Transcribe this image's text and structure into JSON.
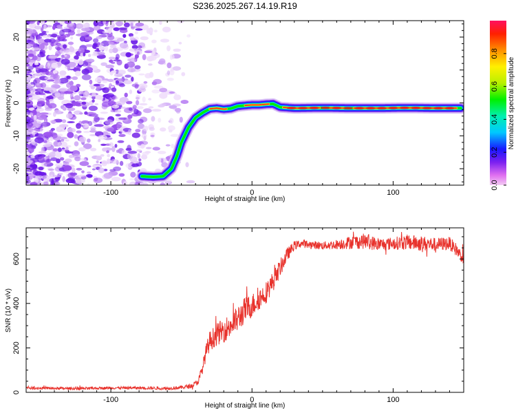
{
  "title": "S236.2025.267.14.19.R19",
  "colors": {
    "snr_line": "#e8322c",
    "axis": "#000000",
    "noise_purple": "#7a2ce8",
    "noise_lavender": "#d6b8f4"
  },
  "chart_data": [
    {
      "type": "heatmap",
      "name": "spectrogram",
      "title": "S236.2025.267.14.19.R19",
      "xlabel": "Height of straight line (km)",
      "ylabel": "Frequency (Hz)",
      "xlim": [
        -160,
        150
      ],
      "ylim": [
        -25,
        25
      ],
      "xticks": [
        -100,
        0,
        100
      ],
      "xtick_labels": [
        "-100",
        "0",
        "100"
      ],
      "yticks": [
        -20,
        -10,
        0,
        10,
        20
      ],
      "ytick_labels": [
        "-20",
        "-10",
        "0",
        "10",
        "20"
      ],
      "track": {
        "x": [
          -78,
          -70,
          -63,
          -57,
          -53,
          -50,
          -45,
          -40,
          -35,
          -30,
          -25,
          -20,
          -15,
          -10,
          -5,
          0,
          5,
          10,
          15,
          20,
          30,
          50,
          70,
          90,
          110,
          130,
          148
        ],
        "y": [
          -22.3,
          -22.5,
          -22.3,
          -20,
          -16,
          -12,
          -7.5,
          -4.5,
          -3,
          -1.8,
          -1.6,
          -1.9,
          -1.7,
          -1,
          -0.8,
          -0.6,
          -0.6,
          -0.4,
          -0.3,
          -1.3,
          -1.6,
          -1.5,
          -1.6,
          -1.6,
          -1.5,
          -1.6,
          -1.6
        ]
      },
      "colorbar": {
        "label": "Normalized spectral amplitude",
        "range": [
          0,
          1
        ],
        "ticks": [
          0.0,
          0.2,
          0.4,
          0.6,
          0.8
        ],
        "tick_labels": [
          "0.0",
          "0.2",
          "0.4",
          "0.6",
          "0.8"
        ]
      }
    },
    {
      "type": "line",
      "name": "snr",
      "xlabel": "Height of straight line (km)",
      "ylabel": "SNR (10 * v/v)",
      "xlim": [
        -160,
        150
      ],
      "ylim": [
        0,
        740
      ],
      "xticks": [
        -100,
        0,
        100
      ],
      "xtick_labels": [
        "-100",
        "0",
        "100"
      ],
      "yticks": [
        0,
        200,
        400,
        600
      ],
      "ytick_labels": [
        "0",
        "200",
        "400",
        "600"
      ],
      "series": [
        {
          "name": "SNR",
          "x": [
            -160,
            -140,
            -120,
            -100,
            -80,
            -60,
            -50,
            -42,
            -38,
            -35,
            -33,
            -30,
            -25,
            -20,
            -15,
            -10,
            -5,
            0,
            5,
            10,
            15,
            20,
            25,
            30,
            35,
            40,
            50,
            60,
            70,
            80,
            90,
            100,
            110,
            120,
            130,
            140,
            145,
            150
          ],
          "values": [
            20,
            18,
            17,
            20,
            20,
            18,
            22,
            30,
            50,
            110,
            170,
            230,
            260,
            280,
            300,
            330,
            370,
            390,
            420,
            450,
            500,
            560,
            620,
            660,
            670,
            665,
            660,
            665,
            675,
            680,
            665,
            670,
            675,
            670,
            665,
            670,
            640,
            600
          ],
          "noise_amplitude": [
            6,
            6,
            6,
            6,
            6,
            7,
            8,
            10,
            15,
            25,
            35,
            45,
            50,
            55,
            55,
            60,
            60,
            55,
            50,
            50,
            45,
            40,
            30,
            20,
            18,
            18,
            18,
            22,
            30,
            35,
            30,
            28,
            35,
            35,
            30,
            30,
            30,
            25
          ]
        }
      ]
    }
  ]
}
